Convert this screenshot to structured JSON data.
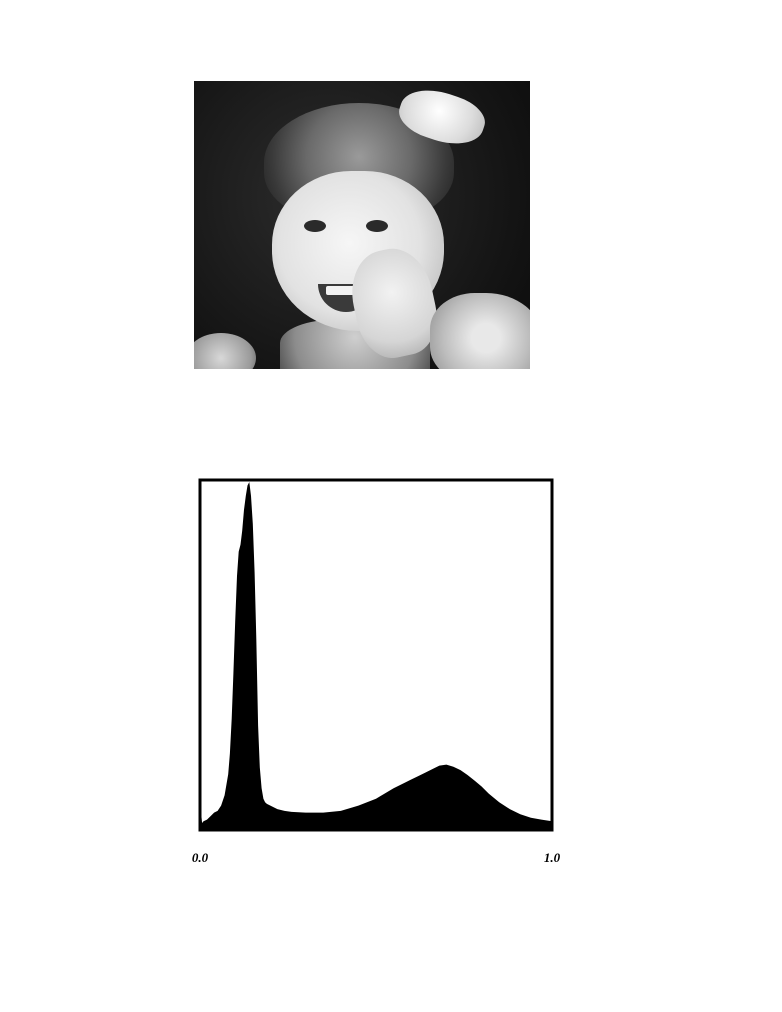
{
  "photo": {
    "subject": "girl-portrait"
  },
  "chart_data": {
    "type": "area",
    "title": "",
    "xlabel": "",
    "ylabel": "",
    "xlim": [
      0.0,
      1.0
    ],
    "ylim": [
      0,
      100
    ],
    "grid": false,
    "fill_color": "#000000",
    "tick_labels": {
      "x_min": "0.0",
      "x_max": "1.0"
    },
    "x": [
      0.0,
      0.002,
      0.004,
      0.006,
      0.01,
      0.02,
      0.03,
      0.04,
      0.05,
      0.06,
      0.07,
      0.08,
      0.085,
      0.09,
      0.095,
      0.1,
      0.105,
      0.11,
      0.115,
      0.12,
      0.125,
      0.13,
      0.135,
      0.14,
      0.145,
      0.15,
      0.155,
      0.16,
      0.165,
      0.17,
      0.175,
      0.18,
      0.185,
      0.19,
      0.2,
      0.21,
      0.22,
      0.24,
      0.26,
      0.3,
      0.35,
      0.4,
      0.45,
      0.5,
      0.55,
      0.58,
      0.6,
      0.62,
      0.64,
      0.66,
      0.68,
      0.7,
      0.72,
      0.74,
      0.76,
      0.78,
      0.8,
      0.82,
      0.85,
      0.88,
      0.91,
      0.94,
      0.97,
      1.0
    ],
    "y": [
      28,
      26,
      4,
      2,
      2.5,
      3,
      4,
      5,
      5.5,
      7,
      10,
      16,
      22,
      32,
      45,
      60,
      73,
      80,
      82,
      86,
      92,
      96,
      99,
      100,
      96,
      88,
      74,
      55,
      30,
      18,
      12,
      9,
      8,
      7.5,
      7,
      6.5,
      6,
      5.5,
      5.2,
      5,
      5,
      5.5,
      7,
      9,
      12,
      13.5,
      14.5,
      15.5,
      16.5,
      17.5,
      18.5,
      18.8,
      18.2,
      17.2,
      15.8,
      14.2,
      12.5,
      10.5,
      8,
      6,
      4.5,
      3.5,
      3,
      2.5
    ]
  }
}
